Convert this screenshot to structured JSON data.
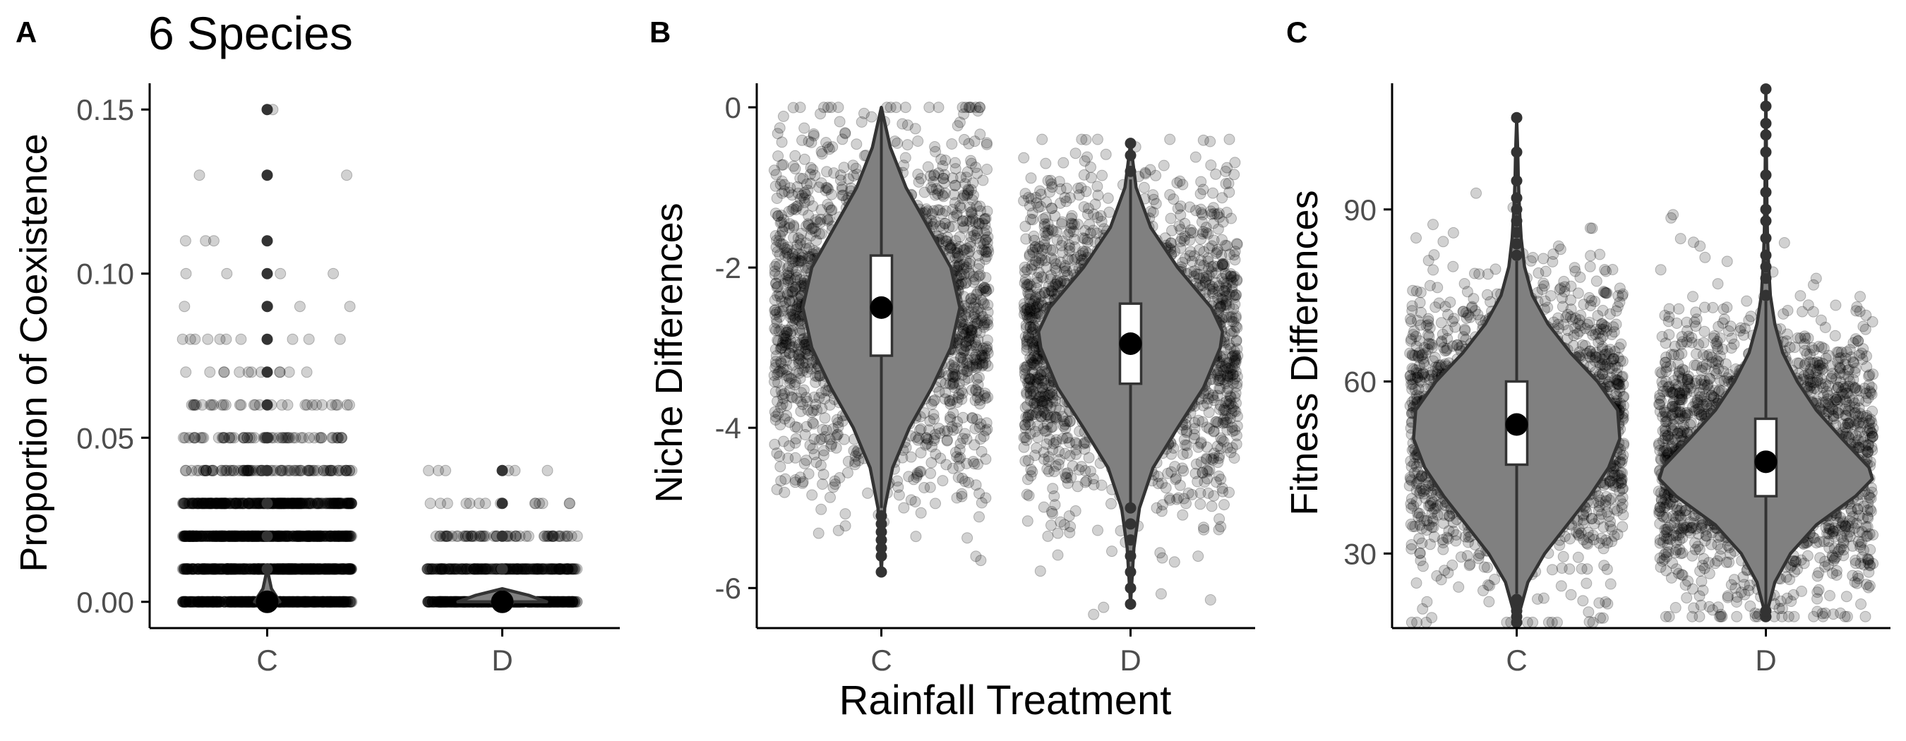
{
  "figure": {
    "shared_xlabel": "Rainfall Treatment"
  },
  "chart_data": [
    {
      "type": "violin",
      "panel_label": "A",
      "title": "6 Species",
      "ylabel": "Proportion of Coexistence",
      "xlabel": "",
      "categories": [
        "C",
        "D"
      ],
      "ylim": [
        -0.008,
        0.158
      ],
      "yticks": [
        0.0,
        0.05,
        0.1,
        0.15
      ],
      "ytick_labels": [
        "0.00",
        "0.05",
        "0.10",
        "0.15"
      ],
      "jitter_points": {
        "C": {
          "levels": [
            0.0,
            0.01,
            0.02,
            0.03,
            0.04,
            0.05,
            0.06,
            0.07,
            0.08,
            0.09,
            0.1,
            0.11,
            0.13,
            0.15
          ],
          "counts": [
            1400,
            700,
            500,
            300,
            90,
            60,
            30,
            12,
            10,
            4,
            4,
            3,
            2,
            1
          ],
          "spread": 0.36
        },
        "D": {
          "levels": [
            0.0,
            0.01,
            0.02,
            0.03,
            0.04
          ],
          "counts": [
            900,
            220,
            60,
            14,
            6
          ],
          "spread": 0.32
        }
      },
      "summary": [
        {
          "category": "C",
          "median": 0.0,
          "q1": 0.0,
          "q3": 0.0,
          "whisker_low": 0.0,
          "whisker_high": 0.0,
          "mean": 0.0,
          "outliers": [
            0.01,
            0.02,
            0.03,
            0.04,
            0.05,
            0.06,
            0.07,
            0.08,
            0.09,
            0.1,
            0.11,
            0.13,
            0.15
          ],
          "violin": {
            "y": [
              0.0,
              0.004,
              0.01
            ],
            "density": [
              0.12,
              0.04,
              0.0
            ]
          }
        },
        {
          "category": "D",
          "median": 0.0,
          "q1": 0.0,
          "q3": 0.0,
          "whisker_low": 0.0,
          "whisker_high": 0.0,
          "mean": 0.0,
          "outliers": [
            0.01,
            0.02,
            0.03,
            0.04
          ],
          "violin": {
            "y": [
              0.0,
              0.002,
              0.004
            ],
            "density": [
              0.42,
              0.25,
              0.0
            ]
          }
        }
      ]
    },
    {
      "type": "violin",
      "panel_label": "B",
      "title": "",
      "ylabel": "Niche Differences",
      "xlabel": "Rainfall Treatment",
      "categories": [
        "C",
        "D"
      ],
      "ylim": [
        -6.5,
        0.3
      ],
      "yticks": [
        -6,
        -4,
        -2,
        0
      ],
      "ytick_labels": [
        "-6",
        "-4",
        "-2",
        "0"
      ],
      "jitter_points": {
        "C": {
          "mean": -2.5,
          "sd": 1.05,
          "n": 3000,
          "min": -6.5,
          "max": 0.0,
          "spread": 0.43
        },
        "D": {
          "mean": -2.9,
          "sd": 0.95,
          "n": 2600,
          "min": -6.5,
          "max": -0.4,
          "spread": 0.43
        }
      },
      "summary": [
        {
          "category": "C",
          "median": -2.5,
          "q1": -3.1,
          "q3": -1.85,
          "whisker_low": -5.0,
          "whisker_high": 0.0,
          "mean": -2.5,
          "outliers": [
            -5.1,
            -5.2,
            -5.3,
            -5.4,
            -5.5,
            -5.6,
            -5.8
          ],
          "violin": {
            "y": [
              -5.8,
              -5.0,
              -4.5,
              -4.0,
              -3.5,
              -3.0,
              -2.5,
              -2.0,
              -1.5,
              -1.0,
              -0.5,
              0.0
            ],
            "density": [
              0.0,
              0.03,
              0.1,
              0.25,
              0.45,
              0.62,
              0.7,
              0.62,
              0.42,
              0.22,
              0.08,
              0.0
            ]
          }
        },
        {
          "category": "D",
          "median": -2.9,
          "q1": -3.45,
          "q3": -2.45,
          "whisker_low": -4.95,
          "whisker_high": -0.9,
          "mean": -2.95,
          "outliers": [
            -0.45,
            -0.6,
            -0.8,
            -5.0,
            -5.2,
            -5.4,
            -5.6,
            -5.8,
            -6.0,
            -6.2
          ],
          "violin": {
            "y": [
              -6.2,
              -5.5,
              -5.0,
              -4.5,
              -4.0,
              -3.5,
              -3.0,
              -2.8,
              -2.5,
              -2.0,
              -1.5,
              -1.0,
              -0.45
            ],
            "density": [
              0.0,
              0.03,
              0.08,
              0.2,
              0.42,
              0.65,
              0.8,
              0.82,
              0.72,
              0.42,
              0.18,
              0.05,
              0.0
            ]
          }
        }
      ]
    },
    {
      "type": "violin",
      "panel_label": "C",
      "title": "",
      "ylabel": "Fitness Differences",
      "xlabel": "",
      "categories": [
        "C",
        "D"
      ],
      "ylim": [
        17,
        112
      ],
      "yticks": [
        30,
        60,
        90
      ],
      "ytick_labels": [
        "30",
        "60",
        "90"
      ],
      "jitter_points": {
        "C": {
          "mean": 52,
          "sd": 12.5,
          "n": 3000,
          "min": 18,
          "max": 106,
          "spread": 0.43
        },
        "D": {
          "mean": 47,
          "sd": 12.0,
          "n": 2600,
          "min": 19,
          "max": 111,
          "spread": 0.43
        }
      },
      "summary": [
        {
          "category": "C",
          "median": 52,
          "q1": 45.5,
          "q3": 60,
          "whisker_low": 23,
          "whisker_high": 81,
          "mean": 52.5,
          "outliers": [
            18,
            19,
            20,
            21,
            22,
            82,
            84,
            86,
            88,
            90,
            92,
            95,
            100,
            106
          ],
          "violin": {
            "y": [
              18,
              25,
              30,
              35,
              40,
              45,
              50,
              55,
              60,
              65,
              70,
              75,
              80,
              85,
              90,
              95,
              100,
              106
            ],
            "density": [
              0.0,
              0.1,
              0.25,
              0.45,
              0.65,
              0.82,
              0.92,
              0.9,
              0.72,
              0.48,
              0.28,
              0.14,
              0.07,
              0.04,
              0.025,
              0.015,
              0.01,
              0.0
            ]
          }
        },
        {
          "category": "D",
          "median": 45,
          "q1": 40,
          "q3": 53.5,
          "whisker_low": 19,
          "whisker_high": 74,
          "mean": 46,
          "outliers": [
            19,
            20,
            75,
            78,
            80,
            82,
            85,
            88,
            90,
            93,
            96,
            100,
            103,
            105,
            108,
            111
          ],
          "violin": {
            "y": [
              19,
              25,
              30,
              35,
              40,
              43,
              45,
              50,
              55,
              60,
              65,
              70,
              75,
              80,
              85,
              90,
              100,
              111
            ],
            "density": [
              0.0,
              0.08,
              0.22,
              0.45,
              0.8,
              0.95,
              0.92,
              0.68,
              0.45,
              0.28,
              0.15,
              0.08,
              0.04,
              0.025,
              0.015,
              0.01,
              0.005,
              0.0
            ]
          }
        }
      ]
    }
  ],
  "colors": {
    "violin_fill": "#808080",
    "violin_stroke": "#333333",
    "point_fill": "rgba(0,0,0,0.18)",
    "point_stroke": "rgba(0,0,0,0.25)",
    "box_fill": "#ffffff",
    "box_stroke": "#333333",
    "mean_dot": "#000000",
    "axis": "#000000",
    "tick_label": "#4d4d4d",
    "label": "#000000"
  }
}
